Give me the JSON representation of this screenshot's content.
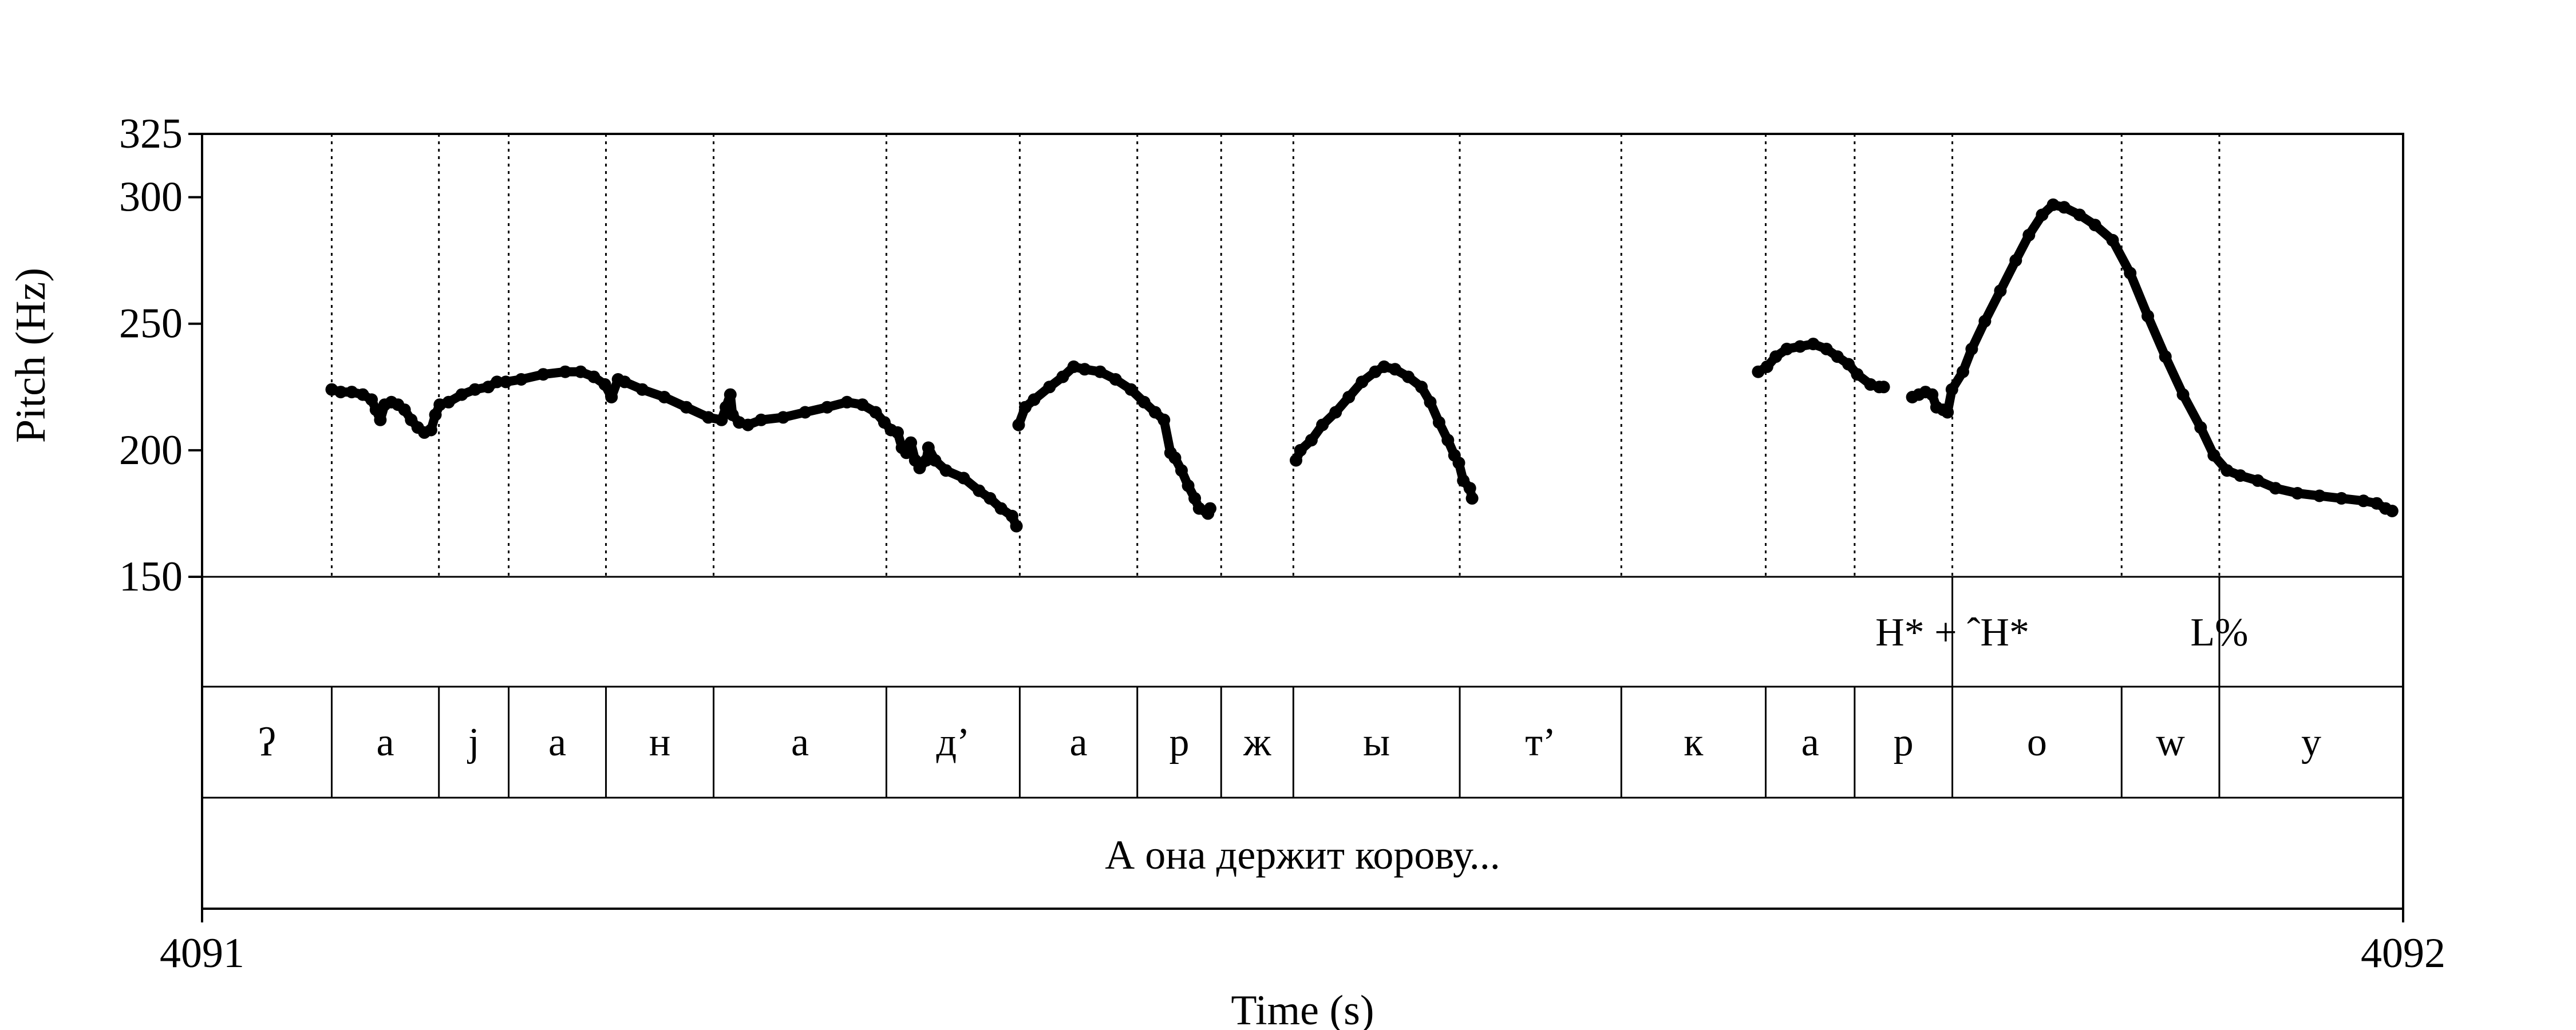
{
  "chart_data": {
    "type": "line",
    "xlabel": "Time (s)",
    "ylabel": "Pitch (Hz)",
    "xlim": [
      4091,
      4092
    ],
    "ylim": [
      150,
      325
    ],
    "x_tick_labels": [
      "4091",
      "4092"
    ],
    "y_ticks": [
      150,
      200,
      250,
      300,
      325
    ],
    "y_tick_labels": [
      "150",
      "200",
      "250",
      "300",
      "325"
    ],
    "grid": false,
    "segment_tier": [
      {
        "label": "ʔ",
        "start": 4091.0,
        "end": 4091.0589
      },
      {
        "label": "a",
        "start": 4091.0589,
        "end": 4091.1076
      },
      {
        "label": "j",
        "start": 4091.1076,
        "end": 4091.1393
      },
      {
        "label": "a",
        "start": 4091.1393,
        "end": 4091.1835
      },
      {
        "label": "н",
        "start": 4091.1835,
        "end": 4091.2324
      },
      {
        "label": "a",
        "start": 4091.2324,
        "end": 4091.3109
      },
      {
        "label": "д’",
        "start": 4091.3109,
        "end": 4091.3715
      },
      {
        "label": "a",
        "start": 4091.3715,
        "end": 4091.4249
      },
      {
        "label": "р",
        "start": 4091.4249,
        "end": 4091.463
      },
      {
        "label": "ж",
        "start": 4091.463,
        "end": 4091.4958
      },
      {
        "label": "ы",
        "start": 4091.4958,
        "end": 4091.5714
      },
      {
        "label": "т’",
        "start": 4091.5714,
        "end": 4091.6448
      },
      {
        "label": "к",
        "start": 4091.6448,
        "end": 4091.7104
      },
      {
        "label": "a",
        "start": 4091.7104,
        "end": 4091.7508
      },
      {
        "label": "р",
        "start": 4091.7508,
        "end": 4091.7952
      },
      {
        "label": "о",
        "start": 4091.7952,
        "end": 4091.8721
      },
      {
        "label": "w",
        "start": 4091.8721,
        "end": 4091.9165
      },
      {
        "label": "у",
        "start": 4091.9165,
        "end": 4092.0
      }
    ],
    "tone_tier": [
      {
        "label": "H* + ˆH*",
        "time": 4091.7952
      },
      {
        "label": "L%",
        "time": 4091.9165
      }
    ],
    "sentence_tier": {
      "label": "А она держит корову...",
      "start": 4091.0,
      "end": 4092.0
    },
    "series": [
      {
        "points": [
          [
            4091.0589,
            224
          ],
          [
            4091.063,
            223
          ],
          [
            4091.068,
            223
          ],
          [
            4091.073,
            222
          ],
          [
            4091.077,
            220
          ],
          [
            4091.079,
            216
          ],
          [
            4091.081,
            212
          ],
          [
            4091.083,
            218
          ],
          [
            4091.086,
            219
          ],
          [
            4091.089,
            218
          ],
          [
            4091.092,
            216
          ],
          [
            4091.095,
            212
          ],
          [
            4091.098,
            209
          ],
          [
            4091.101,
            207
          ],
          [
            4091.104,
            208
          ],
          [
            4091.106,
            214
          ],
          [
            4091.108,
            218
          ],
          [
            4091.112,
            219
          ],
          [
            4091.118,
            222
          ],
          [
            4091.124,
            224
          ],
          [
            4091.13,
            225
          ],
          [
            4091.134,
            227
          ],
          [
            4091.138,
            227
          ],
          [
            4091.145,
            228
          ],
          [
            4091.155,
            230
          ],
          [
            4091.165,
            231
          ],
          [
            4091.172,
            231
          ],
          [
            4091.178,
            229
          ],
          [
            4091.183,
            226
          ],
          [
            4091.186,
            221
          ],
          [
            4091.189,
            228
          ],
          [
            4091.192,
            227
          ],
          [
            4091.2,
            224
          ],
          [
            4091.21,
            221
          ],
          [
            4091.22,
            217
          ],
          [
            4091.23,
            213
          ],
          [
            4091.236,
            212
          ],
          [
            4091.238,
            217
          ],
          [
            4091.24,
            222
          ],
          [
            4091.241,
            214
          ],
          [
            4091.244,
            211
          ],
          [
            4091.248,
            210
          ],
          [
            4091.254,
            212
          ],
          [
            4091.264,
            213
          ],
          [
            4091.274,
            215
          ],
          [
            4091.284,
            217
          ],
          [
            4091.293,
            219
          ],
          [
            4091.3,
            218
          ],
          [
            4091.306,
            215
          ],
          [
            4091.31,
            211
          ],
          [
            4091.313,
            208
          ],
          [
            4091.316,
            207
          ],
          [
            4091.318,
            201
          ],
          [
            4091.32,
            199
          ],
          [
            4091.322,
            203
          ],
          [
            4091.324,
            196
          ],
          [
            4091.326,
            193
          ],
          [
            4091.329,
            196
          ],
          [
            4091.33,
            201
          ],
          [
            4091.333,
            196
          ],
          [
            4091.338,
            192
          ],
          [
            4091.346,
            189
          ],
          [
            4091.353,
            184
          ],
          [
            4091.358,
            181
          ],
          [
            4091.363,
            177
          ],
          [
            4091.368,
            174
          ],
          [
            4091.37,
            170
          ]
        ]
      },
      {
        "points": [
          [
            4091.371,
            210
          ],
          [
            4091.374,
            217
          ],
          [
            4091.378,
            220
          ],
          [
            4091.385,
            225
          ],
          [
            4091.391,
            229
          ],
          [
            4091.396,
            233
          ],
          [
            4091.401,
            232
          ],
          [
            4091.408,
            231
          ],
          [
            4091.415,
            228
          ],
          [
            4091.422,
            224
          ],
          [
            4091.428,
            219
          ],
          [
            4091.433,
            215
          ],
          [
            4091.437,
            212
          ],
          [
            4091.44,
            199
          ],
          [
            4091.442,
            197
          ],
          [
            4091.445,
            192
          ],
          [
            4091.448,
            186
          ],
          [
            4091.451,
            181
          ],
          [
            4091.453,
            177
          ],
          [
            4091.457,
            175
          ],
          [
            4091.458,
            177
          ]
        ]
      },
      {
        "points": [
          [
            4091.497,
            196
          ],
          [
            4091.499,
            200
          ],
          [
            4091.504,
            204
          ],
          [
            4091.509,
            210
          ],
          [
            4091.515,
            215
          ],
          [
            4091.521,
            221
          ],
          [
            4091.527,
            227
          ],
          [
            4091.533,
            231
          ],
          [
            4091.537,
            233
          ],
          [
            4091.542,
            232
          ],
          [
            4091.548,
            229
          ],
          [
            4091.554,
            225
          ],
          [
            4091.558,
            219
          ],
          [
            4091.562,
            211
          ],
          [
            4091.566,
            204
          ],
          [
            4091.569,
            198
          ],
          [
            4091.571,
            195
          ],
          [
            4091.573,
            188
          ],
          [
            4091.576,
            185
          ],
          [
            4091.577,
            181
          ]
        ]
      },
      {
        "points": [
          [
            4091.707,
            231
          ],
          [
            4091.711,
            233
          ],
          [
            4091.715,
            237
          ],
          [
            4091.72,
            240
          ],
          [
            4091.726,
            241
          ],
          [
            4091.732,
            242
          ],
          [
            4091.738,
            240
          ],
          [
            4091.743,
            237
          ],
          [
            4091.748,
            234
          ],
          [
            4091.752,
            230
          ],
          [
            4091.758,
            226
          ],
          [
            4091.762,
            225
          ],
          [
            4091.764,
            225
          ]
        ]
      },
      {
        "points": [
          [
            4091.777,
            221
          ],
          [
            4091.78,
            222
          ],
          [
            4091.783,
            223
          ],
          [
            4091.786,
            222
          ],
          [
            4091.788,
            217
          ],
          [
            4091.791,
            216
          ],
          [
            4091.793,
            215
          ],
          [
            4091.795,
            224
          ],
          [
            4091.8,
            231
          ],
          [
            4091.804,
            240
          ],
          [
            4091.81,
            251
          ],
          [
            4091.817,
            263
          ],
          [
            4091.824,
            275
          ],
          [
            4091.83,
            285
          ],
          [
            4091.836,
            293
          ],
          [
            4091.841,
            297
          ],
          [
            4091.846,
            296
          ],
          [
            4091.853,
            293
          ],
          [
            4091.86,
            289
          ],
          [
            4091.868,
            283
          ],
          [
            4091.876,
            270
          ],
          [
            4091.884,
            253
          ],
          [
            4091.892,
            237
          ],
          [
            4091.9,
            222
          ],
          [
            4091.908,
            209
          ],
          [
            4091.914,
            198
          ],
          [
            4091.92,
            192
          ],
          [
            4091.926,
            190
          ],
          [
            4091.934,
            188
          ],
          [
            4091.942,
            185
          ],
          [
            4091.952,
            183
          ],
          [
            4091.962,
            182
          ],
          [
            4091.972,
            181
          ],
          [
            4091.982,
            180
          ],
          [
            4091.988,
            179
          ],
          [
            4091.992,
            177
          ],
          [
            4091.995,
            176
          ]
        ]
      }
    ]
  }
}
